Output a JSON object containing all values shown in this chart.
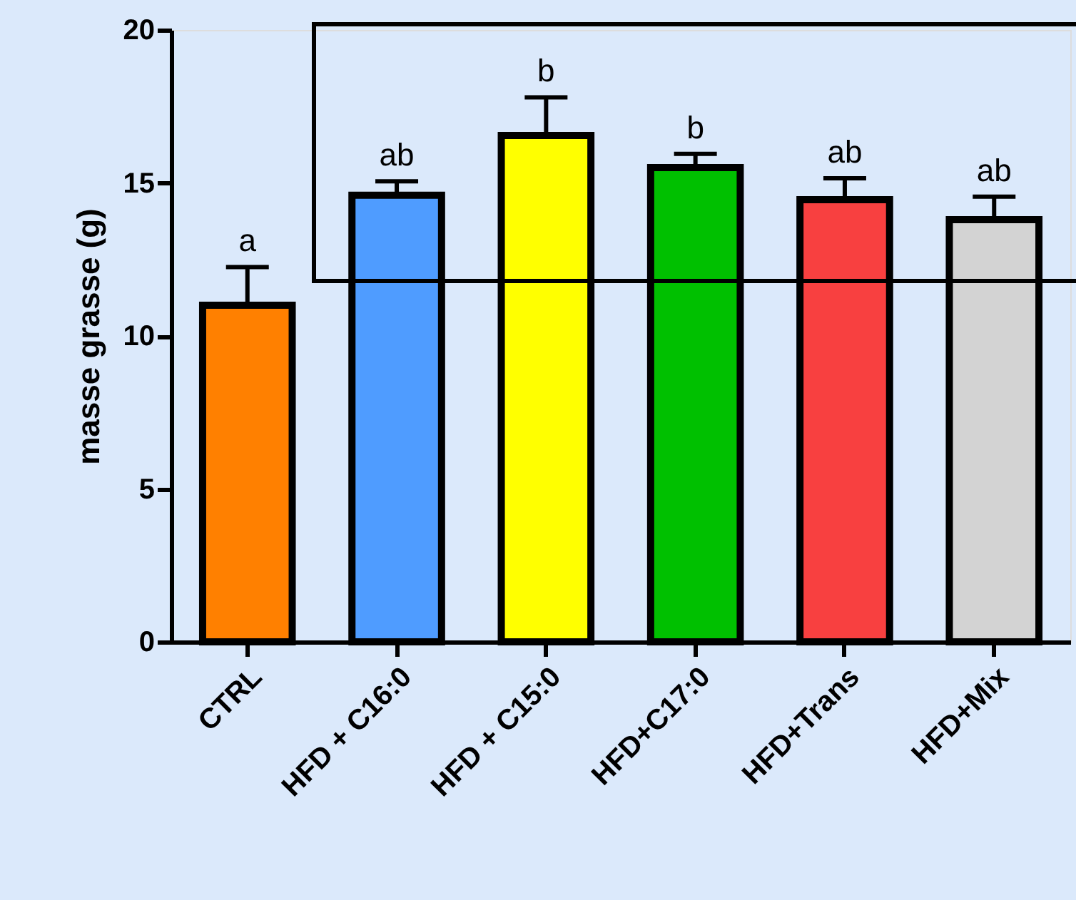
{
  "chart_data": {
    "type": "bar",
    "ylabel": "masse grasse (g)",
    "categories": [
      "CTRL",
      "HFD + C16:0",
      "HFD + C15:0",
      "HFD+C17:0",
      "HFD+Trans",
      "HFD+Mix"
    ],
    "values": [
      11.0,
      14.6,
      16.55,
      15.5,
      14.45,
      13.8
    ],
    "colors": [
      "#ff8000",
      "#4f9cff",
      "#ffff00",
      "#00c000",
      "#f84040",
      "#d3d3d3"
    ],
    "errors": [
      [
        11.0,
        12.25
      ],
      [
        14.6,
        15.05
      ],
      [
        16.55,
        17.8
      ],
      [
        15.5,
        15.95
      ],
      [
        14.45,
        15.15
      ],
      [
        13.8,
        14.55
      ]
    ],
    "ylim": [
      0,
      20
    ],
    "yticks": [
      0,
      5,
      10,
      15,
      20
    ],
    "grid": false,
    "annotations": [
      "a",
      "ab",
      "b",
      "b",
      "ab",
      "ab"
    ]
  }
}
